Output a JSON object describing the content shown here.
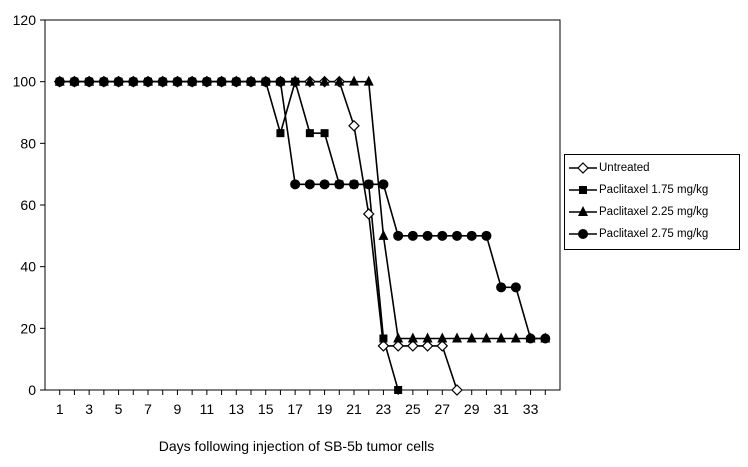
{
  "chart_data": {
    "type": "line",
    "title": "",
    "xlabel": "Days following injection of SB-5b tumor cells",
    "ylabel": "",
    "xlim": [
      0,
      35
    ],
    "ylim": [
      0,
      120
    ],
    "x_ticks": [
      "1",
      "3",
      "5",
      "7",
      "9",
      "11",
      "13",
      "15",
      "17",
      "19",
      "21",
      "23",
      "25",
      "27",
      "29",
      "31",
      "33"
    ],
    "y_ticks": [
      "0",
      "20",
      "40",
      "60",
      "80",
      "100",
      "120"
    ],
    "grid": false,
    "legend_position": "right",
    "series": [
      {
        "name": "Untreated",
        "marker": "diamond-open",
        "color": "#000000",
        "x": [
          1,
          2,
          3,
          4,
          5,
          6,
          7,
          8,
          9,
          10,
          11,
          12,
          13,
          14,
          15,
          16,
          17,
          18,
          19,
          20,
          21,
          22,
          23,
          24,
          25,
          26,
          27,
          28
        ],
        "y": [
          100,
          100,
          100,
          100,
          100,
          100,
          100,
          100,
          100,
          100,
          100,
          100,
          100,
          100,
          100,
          100,
          100,
          100,
          100,
          100,
          85.7,
          57.1,
          14.3,
          14.3,
          14.3,
          14.3,
          14.3,
          0
        ]
      },
      {
        "name": "Paclitaxel 1.75 mg/kg",
        "marker": "square",
        "color": "#000000",
        "x": [
          1,
          2,
          3,
          4,
          5,
          6,
          7,
          8,
          9,
          10,
          11,
          12,
          13,
          14,
          15,
          16,
          17,
          18,
          19,
          20,
          21,
          22,
          23,
          24
        ],
        "y": [
          100,
          100,
          100,
          100,
          100,
          100,
          100,
          100,
          100,
          100,
          100,
          100,
          100,
          100,
          100,
          83.3,
          100,
          83.3,
          83.3,
          66.7,
          66.7,
          66.7,
          16.7,
          0
        ]
      },
      {
        "name": "Paclitaxel 2.25 mg/kg",
        "marker": "triangle",
        "color": "#000000",
        "x": [
          1,
          2,
          3,
          4,
          5,
          6,
          7,
          8,
          9,
          10,
          11,
          12,
          13,
          14,
          15,
          16,
          17,
          18,
          19,
          20,
          21,
          22,
          23,
          24,
          25,
          26,
          27,
          28,
          29,
          30,
          31,
          32,
          33,
          34
        ],
        "y": [
          100,
          100,
          100,
          100,
          100,
          100,
          100,
          100,
          100,
          100,
          100,
          100,
          100,
          100,
          100,
          100,
          100,
          100,
          100,
          100,
          100,
          100,
          50,
          16.7,
          16.7,
          16.7,
          16.7,
          16.7,
          16.7,
          16.7,
          16.7,
          16.7,
          16.7,
          16.7
        ]
      },
      {
        "name": "Paclitaxel 2.75 mg/kg",
        "marker": "circle",
        "color": "#000000",
        "x": [
          1,
          2,
          3,
          4,
          5,
          6,
          7,
          8,
          9,
          10,
          11,
          12,
          13,
          14,
          15,
          16,
          17,
          18,
          19,
          20,
          21,
          22,
          23,
          24,
          25,
          26,
          27,
          28,
          29,
          30,
          31,
          32,
          33,
          34
        ],
        "y": [
          100,
          100,
          100,
          100,
          100,
          100,
          100,
          100,
          100,
          100,
          100,
          100,
          100,
          100,
          100,
          100,
          66.7,
          66.7,
          66.7,
          66.7,
          66.7,
          66.7,
          66.7,
          50,
          50,
          50,
          50,
          50,
          50,
          50,
          33.3,
          33.3,
          16.7,
          16.7
        ]
      }
    ]
  }
}
